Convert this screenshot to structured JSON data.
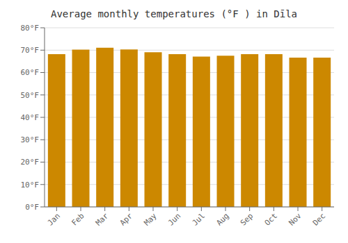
{
  "chart_data": {
    "type": "bar",
    "title": "Average monthly temperatures (°F ) in Dīla",
    "categories": [
      "Jan",
      "Feb",
      "Mar",
      "Apr",
      "May",
      "Jun",
      "Jul",
      "Aug",
      "Sep",
      "Oct",
      "Nov",
      "Dec"
    ],
    "values": [
      68.2,
      70.2,
      71.1,
      70.3,
      69.1,
      68.2,
      67.1,
      67.5,
      68.2,
      68.2,
      66.7,
      66.7
    ],
    "color": "#CC8800",
    "ylim": [
      0,
      80
    ],
    "yticks": [
      {
        "value": 0,
        "label": "0°F"
      },
      {
        "value": 10,
        "label": "10°F"
      },
      {
        "value": 20,
        "label": "20°F"
      },
      {
        "value": 30,
        "label": "30°F"
      },
      {
        "value": 40,
        "label": "40°F"
      },
      {
        "value": 50,
        "label": "50°F"
      },
      {
        "value": 60,
        "label": "60°F"
      },
      {
        "value": 70,
        "label": "70°F"
      },
      {
        "value": 80,
        "label": "80°F"
      }
    ],
    "grid": true
  }
}
